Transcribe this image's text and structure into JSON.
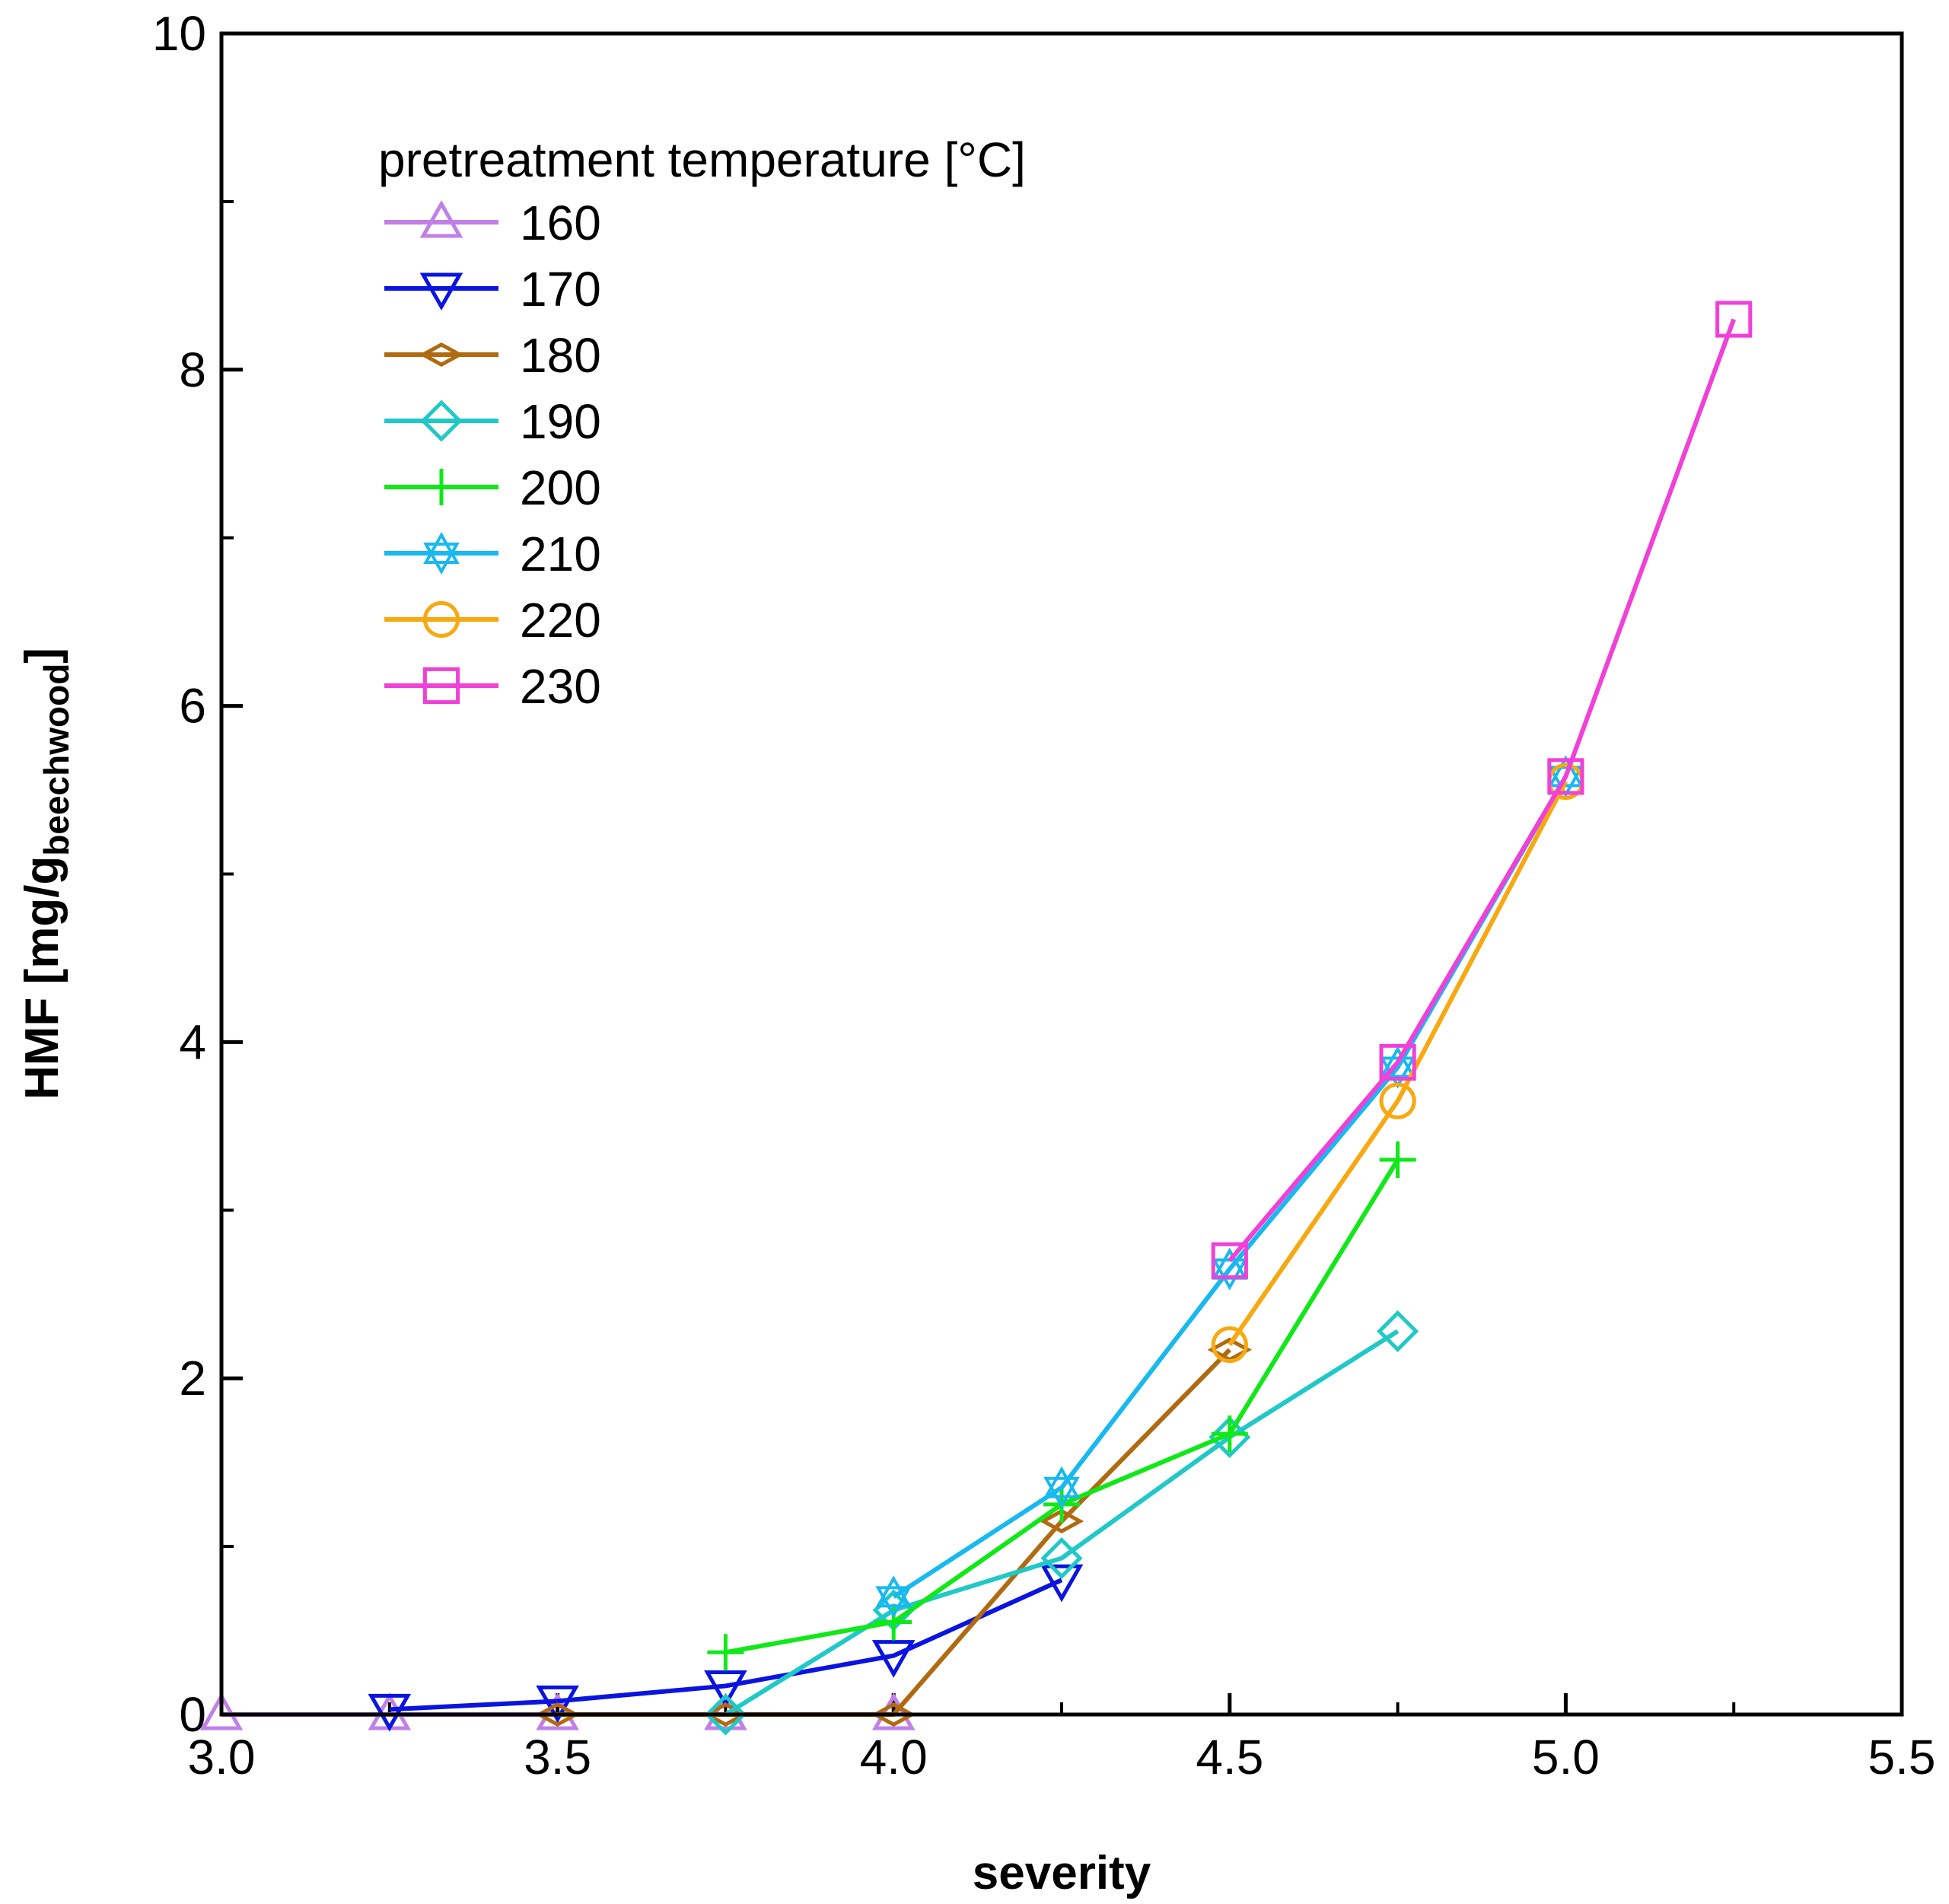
{
  "chart_data": {
    "type": "line",
    "title": "",
    "xlabel": "severity",
    "ylabel_main": "HMF  [mg/g",
    "ylabel_sub": "beechwood",
    "ylabel_end": "]",
    "xlim": [
      3.0,
      5.5
    ],
    "ylim": [
      0,
      10
    ],
    "xticks": [
      3.0,
      3.5,
      4.0,
      4.5,
      5.0,
      5.5
    ],
    "xtick_labels": [
      "3.0",
      "3.5",
      "4.0",
      "4.5",
      "5.0",
      "5.5"
    ],
    "yticks": [
      0,
      2,
      4,
      6,
      8,
      10
    ],
    "ytick_labels": [
      "0",
      "2",
      "4",
      "6",
      "8",
      "10"
    ],
    "legend_title": "pretreatment temperature [°C]",
    "legend_position": "top-left",
    "series": [
      {
        "name": "160",
        "color": "#c080e8",
        "marker": "triangle-up",
        "x": [
          3.0,
          3.25,
          3.5,
          3.75,
          4.0
        ],
        "y": [
          0.0,
          0.0,
          0.0,
          0.0,
          0.0
        ]
      },
      {
        "name": "170",
        "color": "#0a14e0",
        "marker": "triangle-down",
        "x": [
          3.25,
          3.5,
          3.75,
          4.0,
          4.25
        ],
        "y": [
          0.03,
          0.08,
          0.17,
          0.35,
          0.8
        ]
      },
      {
        "name": "180",
        "color": "#b06a10",
        "marker": "thin-diamond",
        "x": [
          3.5,
          3.75,
          4.0,
          4.25,
          4.5
        ],
        "y": [
          0.0,
          0.0,
          0.0,
          1.15,
          2.17
        ]
      },
      {
        "name": "190",
        "color": "#20c8c8",
        "marker": "diamond",
        "x": [
          3.75,
          4.0,
          4.25,
          4.5,
          4.75
        ],
        "y": [
          0.0,
          0.62,
          0.93,
          1.65,
          2.28
        ]
      },
      {
        "name": "200",
        "color": "#10e818",
        "marker": "plus",
        "x": [
          3.75,
          4.0,
          4.25,
          4.5,
          4.75
        ],
        "y": [
          0.37,
          0.55,
          1.25,
          1.67,
          3.3
        ]
      },
      {
        "name": "210",
        "color": "#18b8f0",
        "marker": "star",
        "x": [
          4.0,
          4.25,
          4.5,
          4.75,
          5.0
        ],
        "y": [
          0.7,
          1.35,
          2.65,
          3.85,
          5.58
        ]
      },
      {
        "name": "220",
        "color": "#f8a810",
        "marker": "circle",
        "x": [
          4.5,
          4.75,
          5.0
        ],
        "y": [
          2.2,
          3.65,
          5.55
        ]
      },
      {
        "name": "230",
        "color": "#f040d8",
        "marker": "square",
        "x": [
          4.5,
          4.75,
          5.0,
          5.25
        ],
        "y": [
          2.7,
          3.88,
          5.58,
          8.3
        ]
      }
    ]
  }
}
